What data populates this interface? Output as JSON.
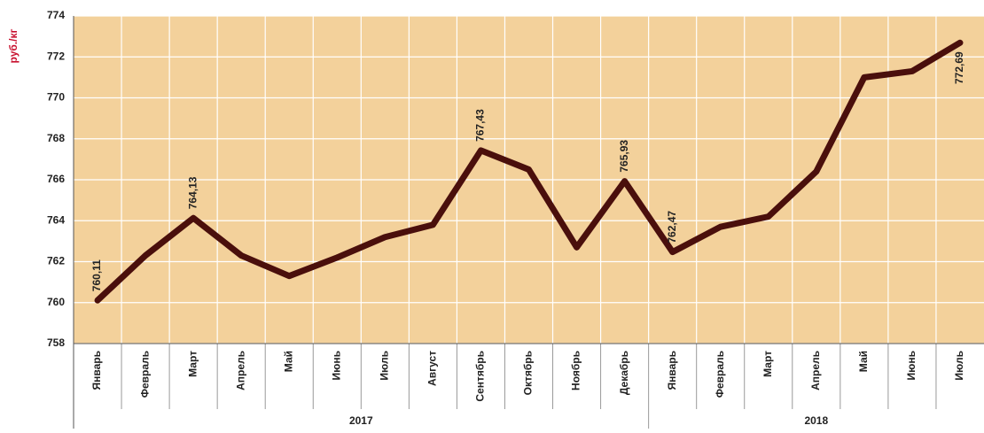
{
  "chart_data": {
    "type": "line",
    "y_label": "руб./кг",
    "category_groups": [
      {
        "label": "2017",
        "categories": [
          "Январь",
          "Февраль",
          "Март",
          "Апрель",
          "Май",
          "Июнь",
          "Июль",
          "Август",
          "Сентябрь",
          "Октябрь",
          "Ноябрь",
          "Декабрь"
        ]
      },
      {
        "label": "2018",
        "categories": [
          "Январь",
          "Февраль",
          "Март",
          "Апрель",
          "Май",
          "Июнь",
          "Июль"
        ]
      }
    ],
    "values": [
      760.11,
      762.3,
      764.13,
      762.3,
      761.3,
      762.2,
      763.2,
      763.8,
      767.43,
      766.5,
      762.7,
      765.93,
      762.47,
      763.7,
      764.2,
      766.4,
      771.0,
      771.3,
      772.69
    ],
    "value_labels": [
      "760,11",
      null,
      "764,13",
      null,
      null,
      null,
      null,
      null,
      "767,43",
      null,
      null,
      "765,93",
      "762,47",
      null,
      null,
      null,
      null,
      null,
      "772,69"
    ],
    "color": "#4a0f0c",
    "ylim": [
      758,
      774
    ],
    "yticks": [
      758,
      760,
      762,
      764,
      766,
      768,
      770,
      772,
      774
    ],
    "grid": true
  }
}
